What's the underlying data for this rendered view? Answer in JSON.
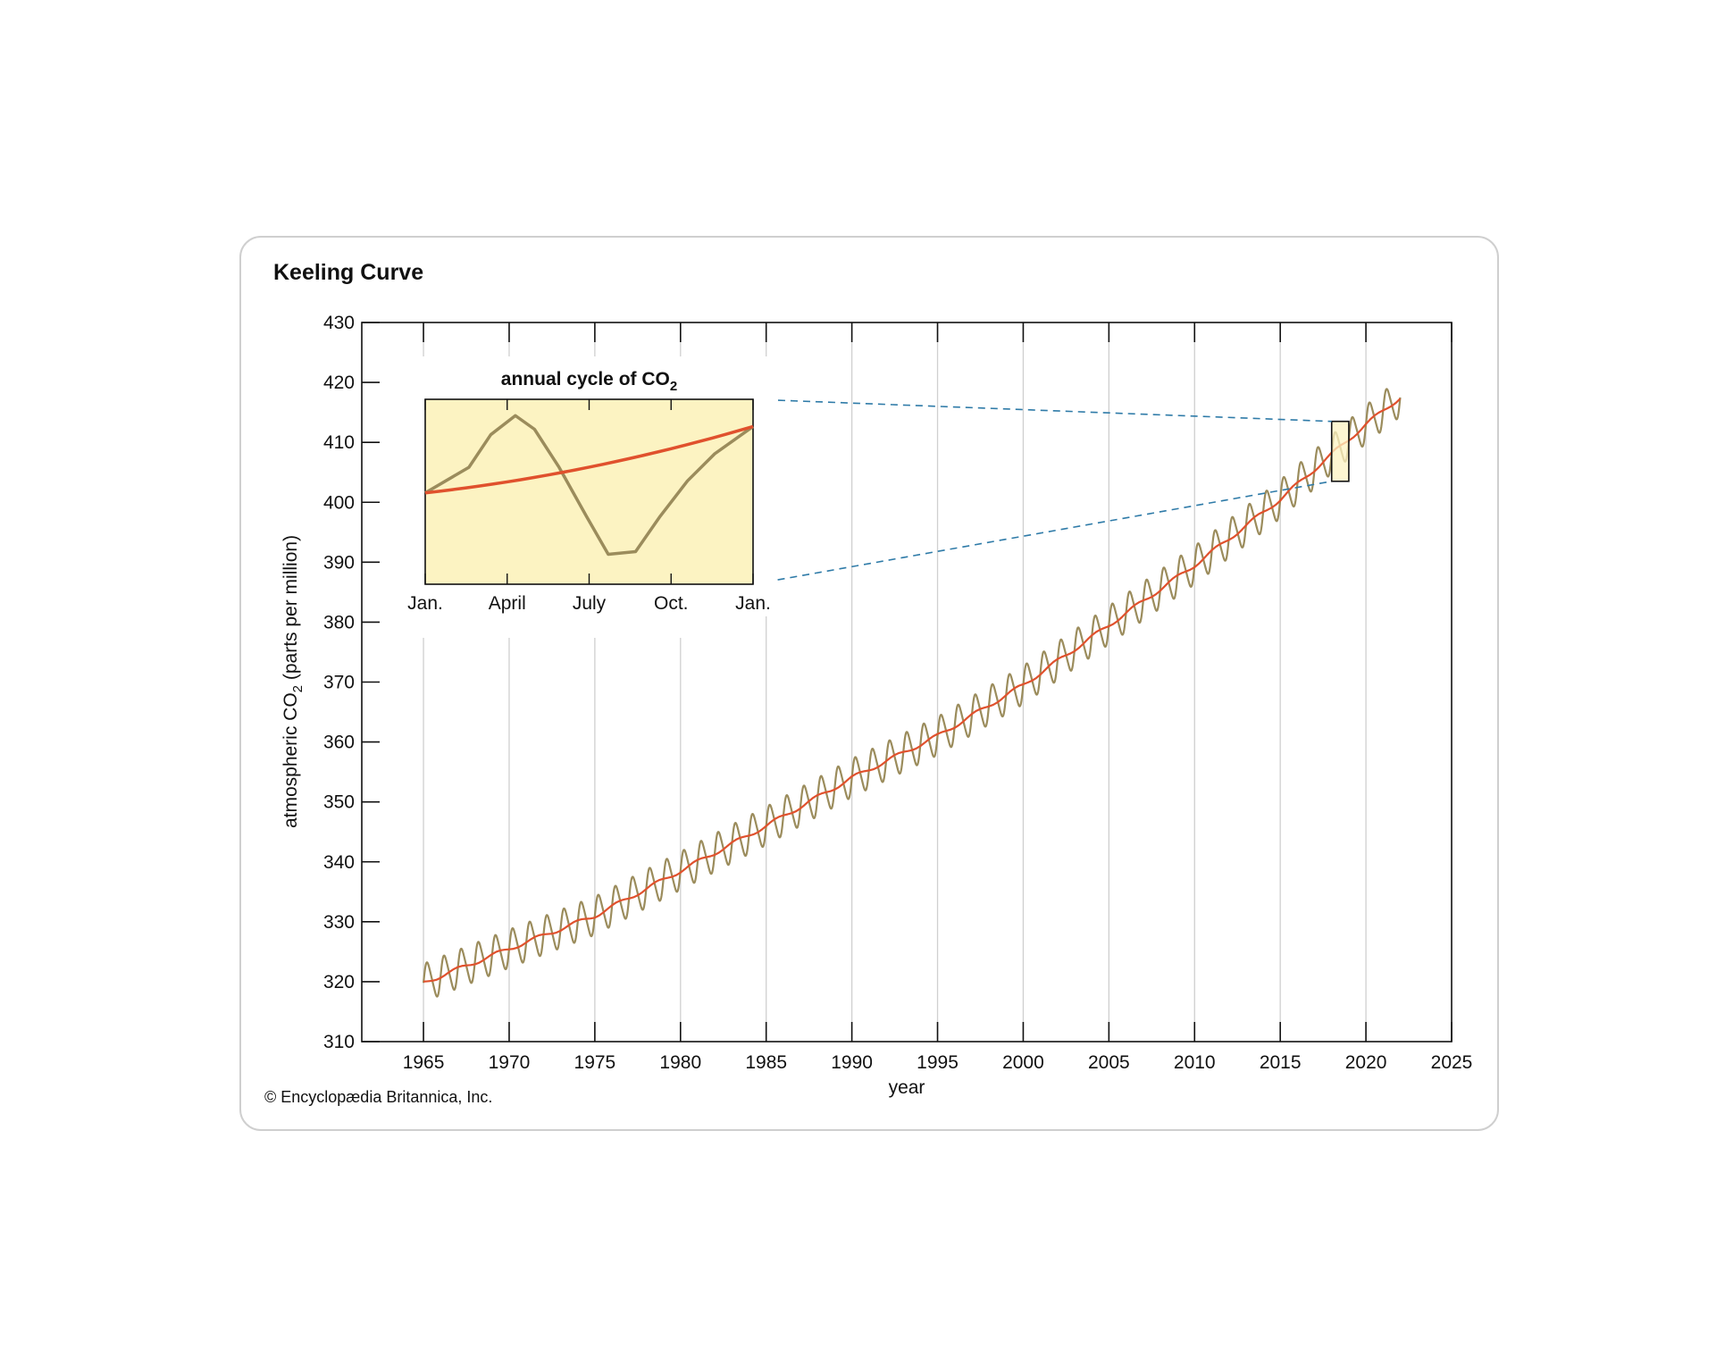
{
  "chart_data": {
    "type": "line",
    "title": "Keeling Curve",
    "xlabel": "year",
    "ylabel_prefix": "atmospheric CO",
    "ylabel_sub": "2",
    "ylabel_suffix": " (parts per million)",
    "xlim": [
      1961.4,
      2025
    ],
    "ylim": [
      310,
      430
    ],
    "xticks": [
      1965,
      1970,
      1975,
      1980,
      1985,
      1990,
      1995,
      2000,
      2005,
      2010,
      2015,
      2020,
      2025
    ],
    "yticks": [
      310,
      320,
      330,
      340,
      350,
      360,
      370,
      380,
      390,
      400,
      410,
      420,
      430
    ],
    "grid": "vertical",
    "series": [
      {
        "role": "monthly",
        "color": "#9b8c5c",
        "seasonal_amplitude": 3.2,
        "x": [
          1965,
          1970,
          1975,
          1980,
          1985,
          1990,
          1995,
          2000,
          2005,
          2010,
          2015,
          2020,
          2022
        ],
        "y": [
          319.8,
          325.5,
          331.0,
          338.5,
          346.0,
          354.0,
          361.0,
          369.5,
          379.5,
          389.5,
          400.5,
          413.0,
          417.5
        ]
      },
      {
        "role": "trend",
        "color": "#e0512d",
        "x": [
          1965,
          1970,
          1975,
          1980,
          1985,
          1990,
          1995,
          2000,
          2005,
          2010,
          2015,
          2020,
          2022
        ],
        "y": [
          319.8,
          325.5,
          331.0,
          338.5,
          346.0,
          354.0,
          361.0,
          369.5,
          379.5,
          389.5,
          400.5,
          413.0,
          417.5
        ]
      }
    ],
    "highlight": {
      "x_range": [
        2018,
        2019
      ],
      "y_range": [
        403.5,
        413.5
      ],
      "fill": "#fcf3c2"
    },
    "inset": {
      "title_prefix": "annual cycle of CO",
      "title_sub": "2",
      "xticks": [
        "Jan.",
        "April",
        "July",
        "Oct.",
        "Jan."
      ],
      "background": "#fcf3c2",
      "seasonal_cycle": {
        "color": "#9b8c5c",
        "x": [
          0,
          1.6,
          2.4,
          3.3,
          4.0,
          4.9,
          5.9,
          6.7,
          7.7,
          8.6,
          9.6,
          10.6,
          12
        ],
        "y": [
          0.8,
          5.5,
          11.5,
          15.0,
          12.5,
          5.5,
          -3.5,
          -10.5,
          -10.0,
          -3.5,
          3.0,
          8.0,
          13.0
        ]
      },
      "trend": {
        "color": "#e0512d",
        "x": [
          0,
          12
        ],
        "y": [
          0.8,
          13.0
        ]
      }
    },
    "connector_color": "#2f7ba8"
  },
  "footer": {
    "copyright": "© Encyclopædia Britannica, Inc."
  }
}
